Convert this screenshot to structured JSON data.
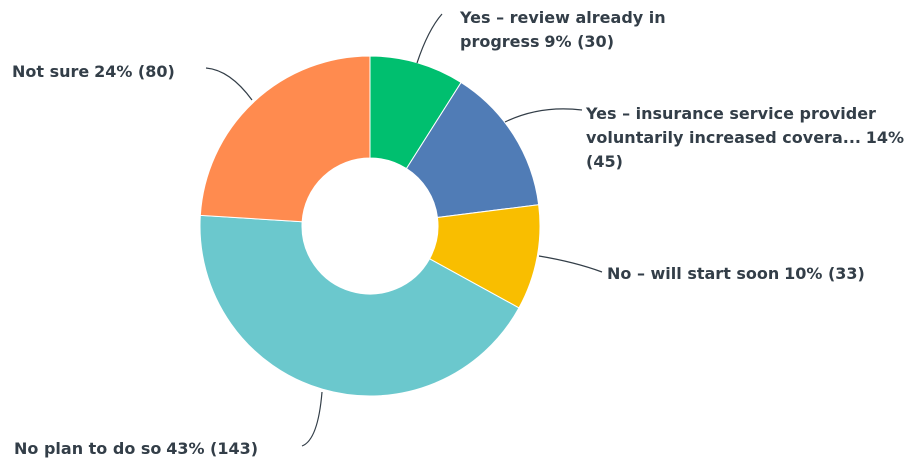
{
  "chart_data": {
    "type": "donut",
    "categories": [
      "Yes – review already in progress",
      "Yes – insurance service provider voluntarily increased covera...",
      "No – will start soon",
      "No plan to do so",
      "Not sure"
    ],
    "values": [
      9,
      14,
      10,
      43,
      24
    ],
    "counts": [
      30,
      45,
      33,
      143,
      80
    ],
    "value_labels": [
      "9% (30)",
      "14% (45)",
      "10% (33)",
      "43% (143)",
      "24% (80)"
    ],
    "colors": [
      "#00bf6f",
      "#507cb6",
      "#f9be00",
      "#6bc8cd",
      "#ff8b4f"
    ]
  }
}
